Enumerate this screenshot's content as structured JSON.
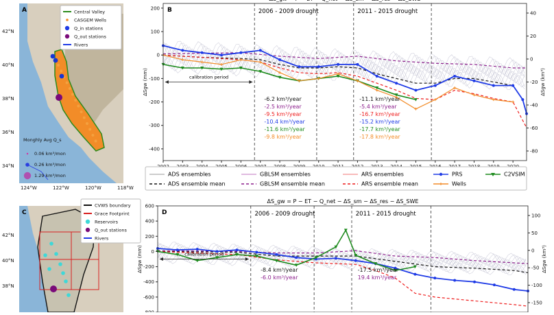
{
  "chart_data": [
    {
      "type": "map",
      "panel_label": "A",
      "legend": [
        "Central Valley",
        "CASGEM Wells",
        "Q_in stations",
        "Q_out stations",
        "Rivers"
      ],
      "size_legend_title": "Monghly Avg Q_s",
      "size_legend": [
        "0.06 km³/mon",
        "0.26 km³/mon",
        "1.29 km³/mon"
      ],
      "lat_ticks": [
        "42°N",
        "40°N",
        "38°N",
        "36°N",
        "34°N"
      ],
      "lon_ticks": [
        "124°W",
        "122°W",
        "120°W",
        "118°W"
      ]
    },
    {
      "type": "line",
      "panel_label": "B",
      "title": "ΔS_gw = P − ET − Q_net − ΔS_sm − ΔS_res − ΔS_SWE",
      "ylabel": "ΔSgw (mm)",
      "ylabel_right": "ΔSgw (km³)",
      "xlim": [
        2002,
        2020.7
      ],
      "ylim": [
        -450,
        220
      ],
      "x_ticks": [
        "2002",
        "2003",
        "2004",
        "2005",
        "2006",
        "2007",
        "2008",
        "2009",
        "2010",
        "2011",
        "2012",
        "2013",
        "2014",
        "2015",
        "2016",
        "2017",
        "2018",
        "2019",
        "2020"
      ],
      "y_ticks": [
        200,
        100,
        0,
        -100,
        -200,
        -300,
        -400
      ],
      "y_right_ticks": [
        "40",
        "20",
        "0",
        "-20",
        "-40",
        "-60",
        "-80"
      ],
      "annotations": {
        "drought1": "2006 - 2009 drought",
        "drought2": "2011 - 2015 drought",
        "calibration": "calibration period"
      },
      "trend_labels_1": [
        "-6.2 km³/year",
        "-2.5 km³/year",
        "-9.5 km³/year",
        "-10.4 km³/year",
        "-11.6 km³/year",
        "-9.8 km³/year"
      ],
      "trend_labels_2": [
        "-11.1 km³/year",
        "-5.4 km³/year",
        "-16.7 km³/year",
        "-15.2 km³/year",
        "-17.7 km³/year",
        "-17.8 km³/year"
      ],
      "series": [
        {
          "name": "ADS ensemble mean",
          "x": [
            2002,
            2004,
            2006,
            2007,
            2008,
            2009,
            2010,
            2011,
            2012,
            2013,
            2014,
            2015,
            2016,
            2017,
            2018,
            2019,
            2020
          ],
          "values": [
            0,
            -10,
            -15,
            -20,
            -40,
            -55,
            -55,
            -50,
            -55,
            -80,
            -100,
            -120,
            -120,
            -100,
            -100,
            -115,
            -130
          ]
        },
        {
          "name": "GBLSM ensemble mean",
          "x": [
            2002,
            2006,
            2008,
            2010,
            2012,
            2014,
            2016,
            2018,
            2020,
            2020.7
          ],
          "values": [
            5,
            10,
            -5,
            -15,
            -5,
            -25,
            -35,
            -40,
            -55,
            -55
          ]
        },
        {
          "name": "ARS ensemble mean",
          "x": [
            2002,
            2004,
            2006,
            2007,
            2008,
            2009,
            2010,
            2011,
            2012,
            2013,
            2014,
            2015,
            2016,
            2017,
            2018,
            2019,
            2020,
            2020.7
          ],
          "values": [
            0,
            -10,
            -20,
            -30,
            -55,
            -75,
            -80,
            -75,
            -90,
            -120,
            -150,
            -185,
            -190,
            -150,
            -165,
            -185,
            -200,
            -310
          ]
        },
        {
          "name": "PRS",
          "x": [
            2002,
            2003,
            2004,
            2005,
            2006,
            2007,
            2008,
            2009,
            2010,
            2011,
            2012,
            2013,
            2014,
            2015,
            2016,
            2017,
            2018,
            2019,
            2020,
            2020.5,
            2020.7
          ],
          "values": [
            40,
            20,
            10,
            0,
            10,
            20,
            -20,
            -50,
            -50,
            -40,
            -40,
            -90,
            -120,
            -150,
            -130,
            -90,
            -110,
            -130,
            -130,
            -190,
            -250
          ]
        },
        {
          "name": "C2VSIM",
          "x": [
            2002,
            2003,
            2004,
            2005,
            2006,
            2007,
            2008,
            2009,
            2010,
            2011,
            2012,
            2013,
            2014,
            2015
          ],
          "values": [
            -40,
            -55,
            -55,
            -60,
            -55,
            -70,
            -95,
            -110,
            -100,
            -90,
            -110,
            -140,
            -170,
            -190
          ]
        },
        {
          "name": "Wells",
          "x": [
            2002,
            2003,
            2004,
            2005,
            2006,
            2007,
            2008,
            2009,
            2010,
            2011,
            2012,
            2013,
            2014,
            2015,
            2016,
            2017,
            2018,
            2019,
            2020
          ],
          "values": [
            0,
            -20,
            -30,
            -40,
            -20,
            -30,
            -75,
            -110,
            -100,
            -80,
            -110,
            -150,
            -180,
            -230,
            -190,
            -140,
            -170,
            -190,
            -200
          ]
        }
      ],
      "legend": [
        "ADS ensembles",
        "ADS ensemble mean",
        "GBLSM ensembles",
        "GBLSM ensemble mean",
        "ARS ensembles",
        "ARS ensemble mean",
        "PRS",
        "Wells",
        "C2VSIM"
      ]
    },
    {
      "type": "map",
      "panel_label": "C",
      "legend": [
        "CVWS boundary",
        "Grace Footprint",
        "Reservoirs",
        "Q_out stations",
        "Rivers"
      ],
      "lat_ticks": [
        "42°N",
        "40°N",
        "38°N"
      ]
    },
    {
      "type": "line",
      "panel_label": "D",
      "title": "ΔS_gw = P − ET − Q_net − ΔS_sm − ΔS_res − ΔS_SWE",
      "ylabel": "ΔSgw (mm)",
      "ylabel_right": "ΔSgw (km³)",
      "xlim": [
        2002,
        2020.7
      ],
      "ylim": [
        -800,
        600
      ],
      "y_ticks": [
        600,
        400,
        200,
        0,
        -200,
        -400,
        -600,
        -800
      ],
      "y_right_ticks": [
        "100",
        "50",
        "0",
        "-50",
        "-100",
        "-150"
      ],
      "annotations": {
        "drought1": "2006 - 2009 drought",
        "drought2": "2011 - 2015 drought",
        "calibration": "calibration period"
      },
      "trend_labels_1": [
        "-8.4 km³/year",
        "-6.0 km³/year"
      ],
      "trend_labels_2": [
        "-17.5 km³/year",
        "19.4 km³/year"
      ],
      "series": [
        {
          "name": "ADS ensemble mean",
          "x": [
            2002,
            2006,
            2008,
            2010,
            2012,
            2014,
            2016,
            2018,
            2020,
            2020.7
          ],
          "values": [
            0,
            -10,
            -60,
            -60,
            -60,
            -130,
            -200,
            -220,
            -250,
            -280
          ]
        },
        {
          "name": "GBLSM ensemble mean",
          "x": [
            2002,
            2006,
            2008,
            2010,
            2012,
            2014,
            2016,
            2018,
            2020,
            2020.7
          ],
          "values": [
            10,
            0,
            -20,
            -20,
            10,
            -60,
            -80,
            -120,
            -150,
            -160
          ]
        },
        {
          "name": "ARS ensemble mean",
          "x": [
            2002,
            2006,
            2008,
            2010,
            2012,
            2013,
            2014,
            2015,
            2016,
            2018,
            2020,
            2020.7
          ],
          "values": [
            0,
            -40,
            -110,
            -150,
            -170,
            -250,
            -350,
            -550,
            -600,
            -650,
            -700,
            -720
          ]
        },
        {
          "name": "PRS",
          "x": [
            2002,
            2003,
            2004,
            2005,
            2006,
            2007,
            2008,
            2009,
            2010,
            2011,
            2012,
            2013,
            2014,
            2015,
            2016,
            2017,
            2018,
            2019,
            2020,
            2020.7
          ],
          "values": [
            40,
            20,
            30,
            0,
            20,
            -10,
            -40,
            -80,
            -100,
            -90,
            -120,
            -160,
            -220,
            -300,
            -350,
            -380,
            -400,
            -440,
            -500,
            -520
          ]
        },
        {
          "name": "C2VSIM",
          "x": [
            2002,
            2003,
            2004,
            2005,
            2006,
            2007,
            2008,
            2009,
            2010,
            2011,
            2011.5,
            2012,
            2013,
            2014,
            2015
          ],
          "values": [
            0,
            -40,
            -120,
            -80,
            -40,
            -60,
            -120,
            -180,
            -80,
            60,
            280,
            -50,
            -160,
            -250,
            -200
          ]
        }
      ]
    }
  ]
}
